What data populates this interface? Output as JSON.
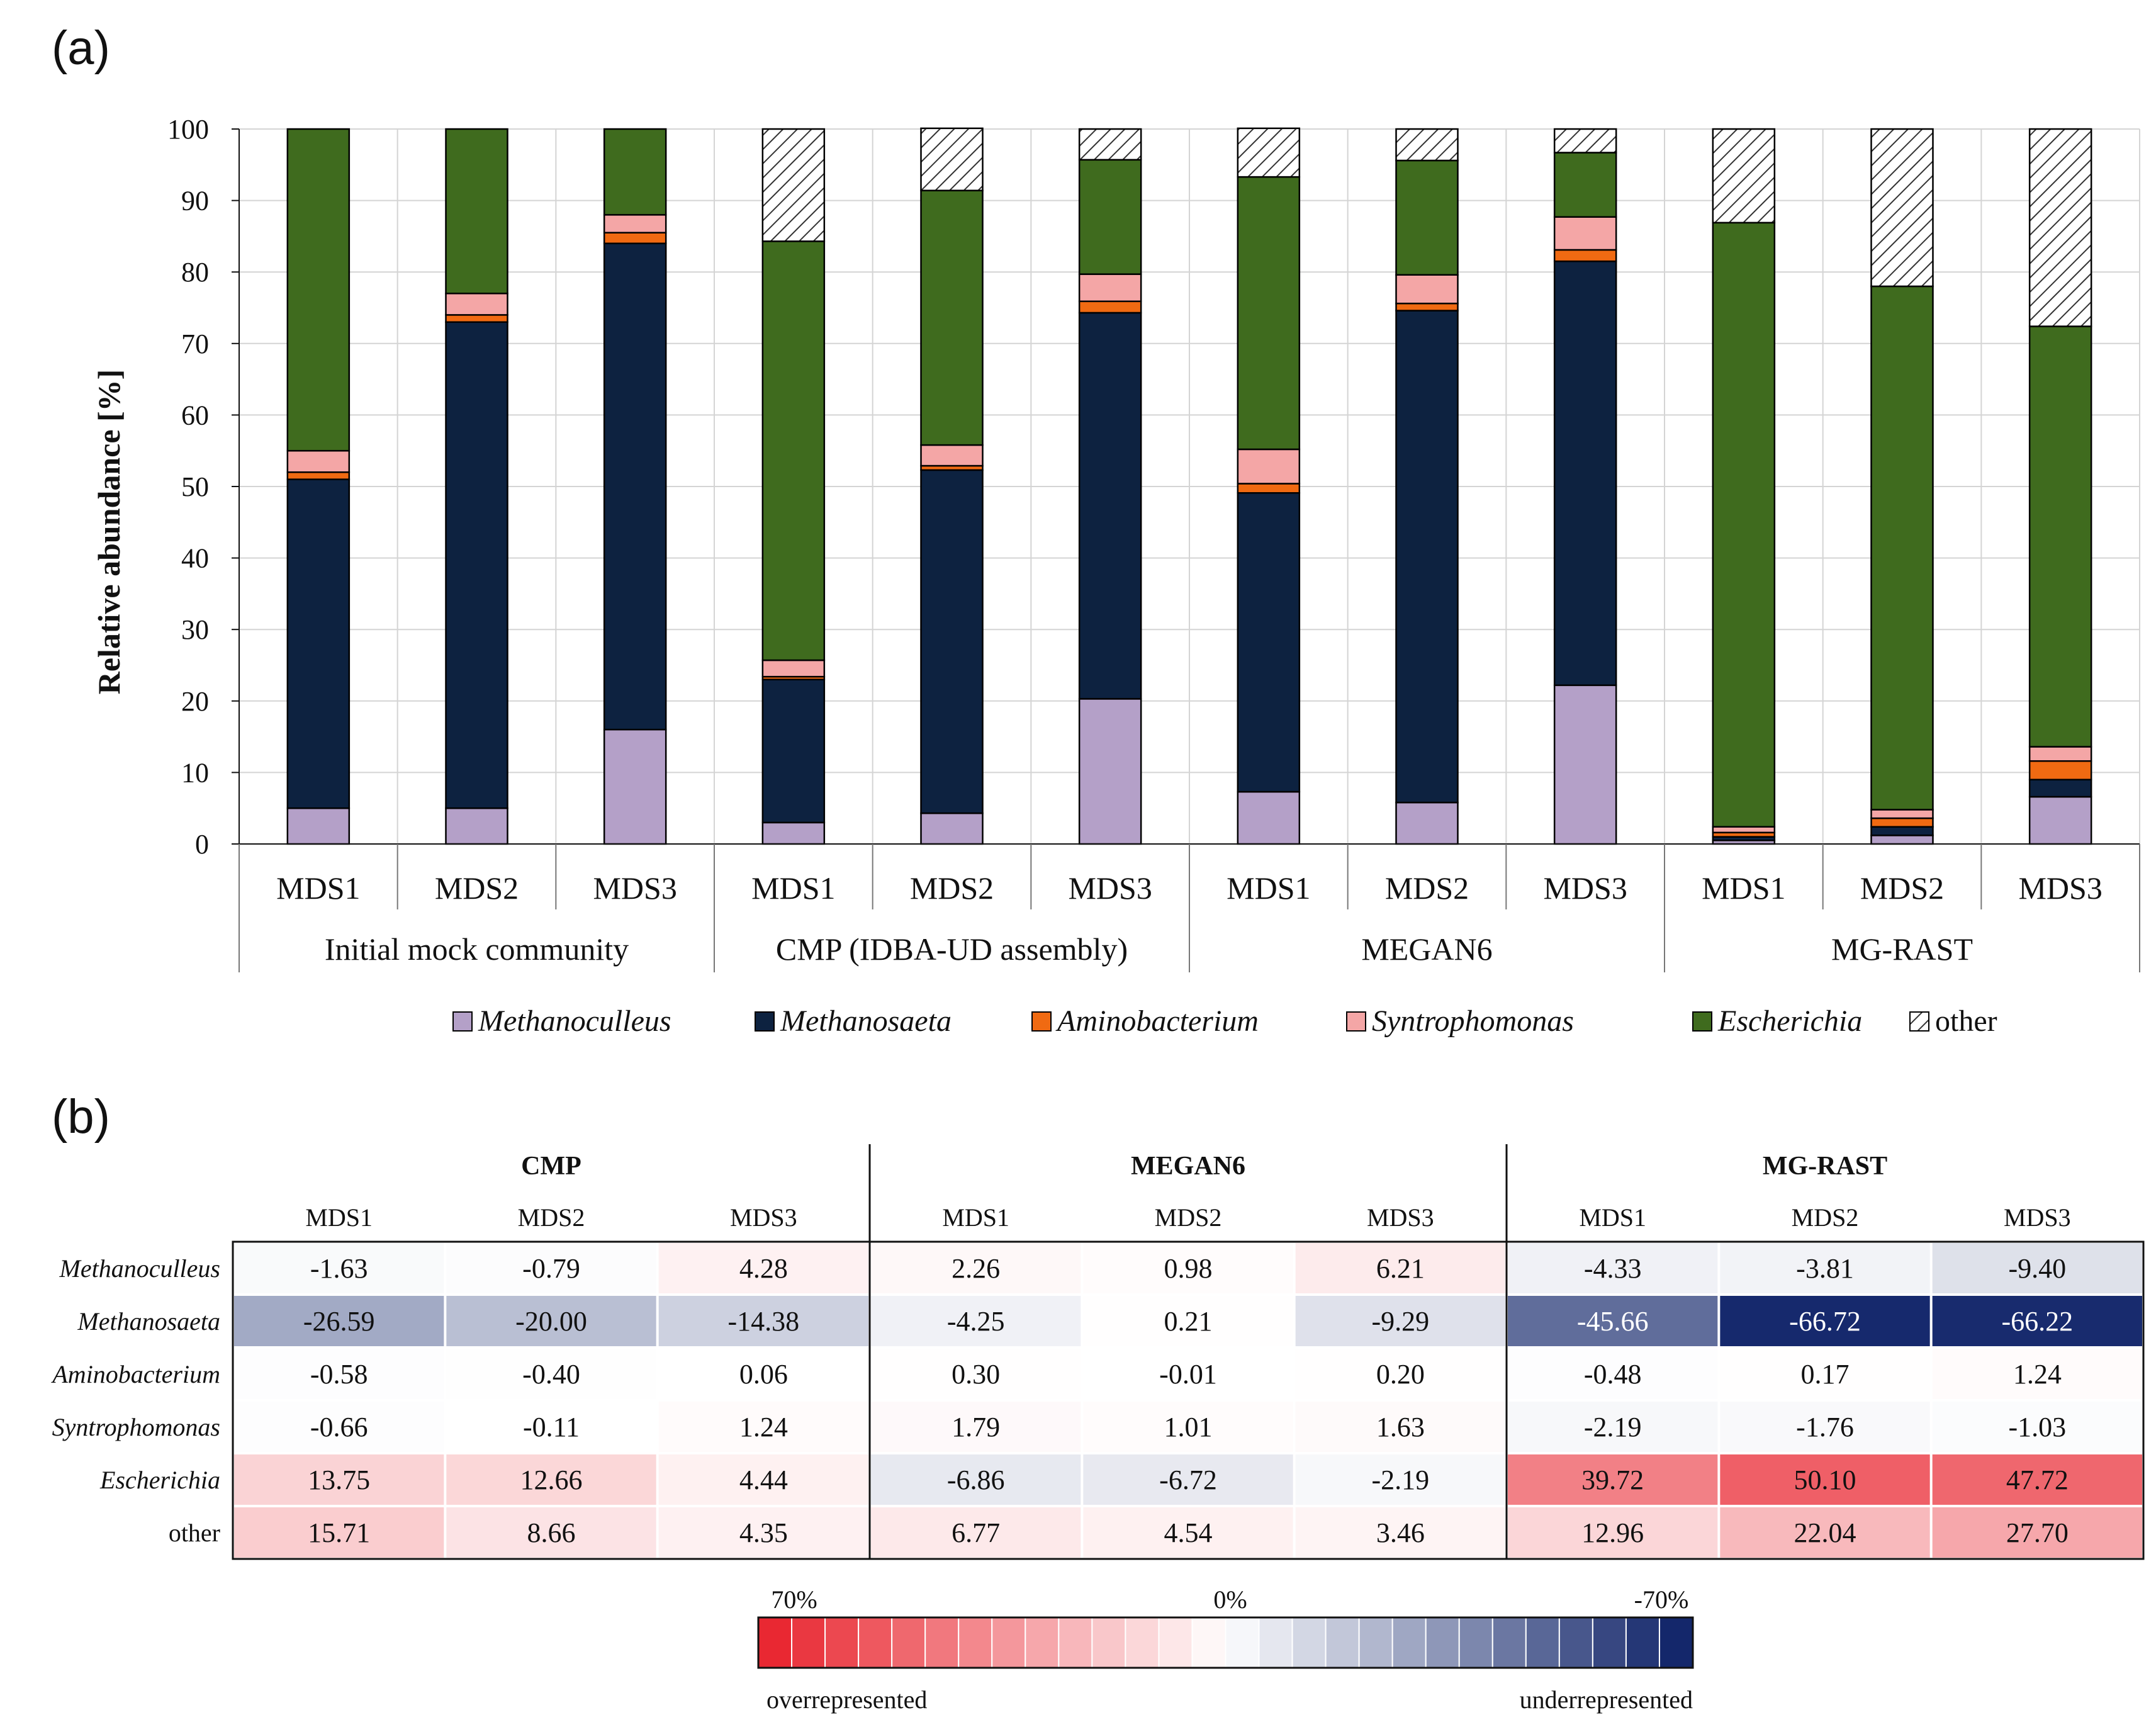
{
  "panel_a_label": "(a)",
  "panel_b_label": "(b)",
  "chart_data": [
    {
      "type": "bar",
      "stacked": true,
      "title": "",
      "ylabel": "Relative abundance  [%]",
      "xlabel": "",
      "ylim": [
        0,
        100
      ],
      "yticks": [
        "0",
        "10",
        "20",
        "30",
        "40",
        "50",
        "60",
        "70",
        "80",
        "90",
        "100"
      ],
      "categories": [
        "MDS1",
        "MDS2",
        "MDS3",
        "MDS1",
        "MDS2",
        "MDS3",
        "MDS1",
        "MDS2",
        "MDS3",
        "MDS1",
        "MDS2",
        "MDS3"
      ],
      "groups": [
        "Initial mock community",
        "CMP (IDBA-UD assembly)",
        "MEGAN6",
        "MG-RAST"
      ],
      "series": [
        {
          "name": "Methanoculleus",
          "color": "#b4a0c8",
          "values": [
            5.0,
            5.0,
            16.0,
            3.0,
            4.3,
            20.3,
            7.3,
            5.8,
            22.2,
            0.5,
            1.2,
            6.6
          ]
        },
        {
          "name": "Methanosaeta",
          "color": "#0d2240",
          "values": [
            46.0,
            68.0,
            68.0,
            20.0,
            48.0,
            54.0,
            41.8,
            68.8,
            59.3,
            0.5,
            1.2,
            2.4
          ]
        },
        {
          "name": "Aminobacterium",
          "color": "#f06a12",
          "values": [
            1.0,
            1.0,
            1.5,
            0.4,
            0.6,
            1.6,
            1.3,
            1.0,
            1.6,
            0.6,
            1.2,
            2.6
          ]
        },
        {
          "name": "Syntrophomonas",
          "color": "#f4a6a6",
          "values": [
            3.0,
            3.0,
            2.5,
            2.3,
            2.9,
            3.8,
            4.8,
            4.0,
            4.6,
            0.8,
            1.2,
            2.0
          ]
        },
        {
          "name": "Escherichia",
          "color": "#3f6b1e",
          "values": [
            45.0,
            23.0,
            12.0,
            58.6,
            35.6,
            16.0,
            38.1,
            16.0,
            9.0,
            84.5,
            73.2,
            58.8
          ]
        },
        {
          "name": "other",
          "color": "hatch",
          "values": [
            0,
            0,
            0,
            15.7,
            8.7,
            4.3,
            6.8,
            4.4,
            3.3,
            13.1,
            22.0,
            27.6
          ]
        }
      ]
    },
    {
      "type": "heatmap",
      "groups": [
        "CMP",
        "MEGAN6",
        "MG-RAST"
      ],
      "columns": [
        "MDS1",
        "MDS2",
        "MDS3",
        "MDS1",
        "MDS2",
        "MDS3",
        "MDS1",
        "MDS2",
        "MDS3"
      ],
      "rows": [
        "Methanoculleus",
        "Methanosaeta",
        "Aminobacterium",
        "Syntrophomonas",
        "Escherichia",
        "other"
      ],
      "values": [
        [
          -1.63,
          -0.79,
          4.28,
          2.26,
          0.98,
          6.21,
          -4.33,
          -3.81,
          -9.4
        ],
        [
          -26.59,
          -20.0,
          -14.38,
          -4.25,
          0.21,
          -9.29,
          -45.66,
          -66.72,
          -66.22
        ],
        [
          -0.58,
          -0.4,
          0.06,
          0.3,
          -0.01,
          0.2,
          -0.48,
          0.17,
          1.24
        ],
        [
          -0.66,
          -0.11,
          1.24,
          1.79,
          1.01,
          1.63,
          -2.19,
          -1.76,
          -1.03
        ],
        [
          13.75,
          12.66,
          4.44,
          -6.86,
          -6.72,
          -2.19,
          39.72,
          50.1,
          47.72
        ],
        [
          15.71,
          8.66,
          4.35,
          6.77,
          4.54,
          3.46,
          12.96,
          22.04,
          27.7
        ]
      ],
      "labels": [
        [
          "-1.63",
          "-0.79",
          "4.28",
          "2.26",
          "0.98",
          "6.21",
          "-4.33",
          "-3.81",
          "-9.40"
        ],
        [
          "-26.59",
          "-20.00",
          "-14.38",
          "-4.25",
          "0.21",
          "-9.29",
          "-45.66",
          "-66.72",
          "-66.22"
        ],
        [
          "-0.58",
          "-0.40",
          "0.06",
          "0.30",
          "-0.01",
          "0.20",
          "-0.48",
          "0.17",
          "1.24"
        ],
        [
          "-0.66",
          "-0.11",
          "1.24",
          "1.79",
          "1.01",
          "1.63",
          "-2.19",
          "-1.76",
          "-1.03"
        ],
        [
          "13.75",
          "12.66",
          "4.44",
          "-6.86",
          "-6.72",
          "-2.19",
          "39.72",
          "50.10",
          "47.72"
        ],
        [
          "15.71",
          "8.66",
          "4.35",
          "6.77",
          "4.54",
          "3.46",
          "12.96",
          "22.04",
          "27.70"
        ]
      ],
      "scale_range": [
        70,
        -70
      ],
      "scale_labels": {
        "left": "70%",
        "center": "0%",
        "right": "-70%"
      },
      "scale_captions": {
        "left": "overrepresented",
        "right": "underrepresented"
      },
      "colors": {
        "positive": "#e8202a",
        "negative": "#0b1f66",
        "zero": "#ffffff"
      }
    }
  ]
}
